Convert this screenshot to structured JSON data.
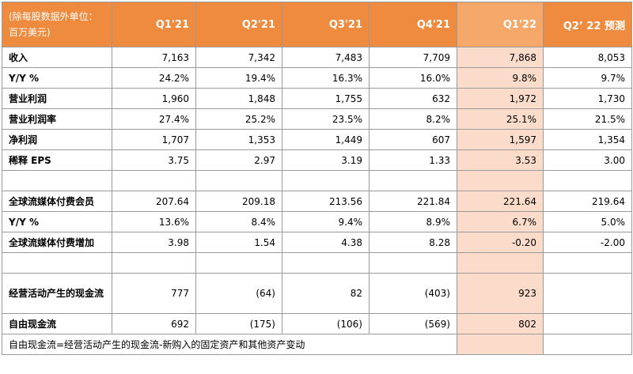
{
  "header": {
    "unit": "(除每股数据外单位：百万美元)",
    "columns": [
      "Q1'21",
      "Q2'21",
      "Q3'21",
      "Q4'21",
      "Q1'22",
      "Q2’ 22 预测"
    ]
  },
  "rows": [
    {
      "label": "收入",
      "values": [
        "7,163",
        "7,342",
        "7,483",
        "7,709",
        "7,868",
        "8,053"
      ]
    },
    {
      "label": "Y/Y %",
      "values": [
        "24.2%",
        "19.4%",
        "16.3%",
        "16.0%",
        "9.8%",
        "9.7%"
      ]
    },
    {
      "label": "营业利润",
      "values": [
        "1,960",
        "1,848",
        "1,755",
        "632",
        "1,972",
        "1,730"
      ]
    },
    {
      "label": "营业利润率",
      "values": [
        "27.4%",
        "25.2%",
        "23.5%",
        "8.2%",
        "25.1%",
        "21.5%"
      ]
    },
    {
      "label": "净利润",
      "values": [
        "1,707",
        "1,353",
        "1,449",
        "607",
        "1,597",
        "1,354"
      ]
    },
    {
      "label": "稀释 EPS",
      "values": [
        "3.75",
        "2.97",
        "3.19",
        "1.33",
        "3.53",
        "3.00"
      ]
    },
    {
      "label": "",
      "values": [
        "",
        "",
        "",
        "",
        "",
        ""
      ]
    },
    {
      "label": "全球流媒体付费会员",
      "values": [
        "207.64",
        "209.18",
        "213.56",
        "221.84",
        "221.64",
        "219.64"
      ]
    },
    {
      "label": "Y/Y %",
      "values": [
        "13.6%",
        "8.4%",
        "9.4%",
        "8.9%",
        "6.7%",
        "5.0%"
      ]
    },
    {
      "label": "全球流媒体付费增加",
      "values": [
        "3.98",
        "1.54",
        "4.38",
        "8.28",
        "-0.20",
        "-2.00"
      ]
    },
    {
      "label": "",
      "values": [
        "",
        "",
        "",
        "",
        "",
        ""
      ]
    },
    {
      "label": "经营活动产生的现金流",
      "values": [
        "777",
        "(64)",
        "82",
        "(403)",
        "923",
        ""
      ]
    },
    {
      "label": "自由现金流",
      "values": [
        "692",
        "(175)",
        "(106)",
        "(569)",
        "802",
        ""
      ]
    }
  ],
  "footnote": "自由现金流=经营活动产生的现金流-新购入的固定资产和其他资产变动"
}
